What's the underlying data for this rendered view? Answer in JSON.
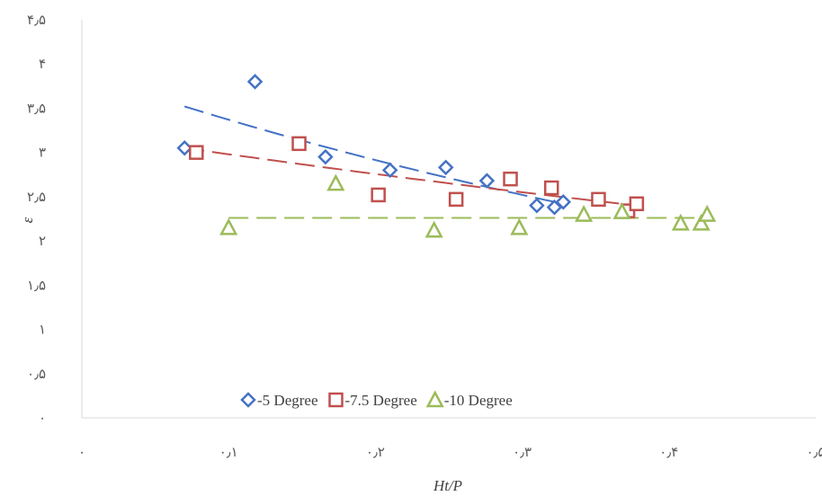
{
  "chart_data": {
    "type": "scatter",
    "xlabel": "Ht/P",
    "ylabel": "ε",
    "xlim": [
      0,
      0.5
    ],
    "ylim": [
      0,
      4.5
    ],
    "x_ticks": [
      0,
      0.1,
      0.2,
      0.3,
      0.4,
      0.5
    ],
    "x_tick_labels": [
      "۰",
      "۰٫۱",
      "۰٫۲",
      "۰٫۳",
      "۰٫۴",
      "۰٫۵"
    ],
    "y_ticks": [
      0,
      0.5,
      1,
      1.5,
      2,
      2.5,
      3,
      3.5,
      4,
      4.5
    ],
    "y_tick_labels": [
      "۰",
      "۰٫۵",
      "۱",
      "۱٫۵",
      "۲",
      "۲٫۵",
      "۳",
      "۳٫۵",
      "۴",
      "۴٫۵"
    ],
    "grid": false,
    "legend_position": "bottom-left-inside",
    "series": [
      {
        "name": "-5 Degree",
        "marker": "diamond",
        "color": "#4472C4",
        "x": [
          0.07,
          0.118,
          0.166,
          0.21,
          0.248,
          0.276,
          0.31,
          0.322,
          0.328
        ],
        "y": [
          3.05,
          3.8,
          2.95,
          2.8,
          2.83,
          2.68,
          2.4,
          2.38,
          2.44
        ]
      },
      {
        "name": "-7.5 Degree",
        "marker": "square",
        "color": "#C0504D",
        "x": [
          0.078,
          0.148,
          0.202,
          0.255,
          0.292,
          0.32,
          0.352,
          0.372,
          0.378
        ],
        "y": [
          3.0,
          3.1,
          2.52,
          2.47,
          2.7,
          2.6,
          2.47,
          2.34,
          2.42
        ]
      },
      {
        "name": "-10 Degree",
        "marker": "triangle",
        "color": "#9BBB59",
        "x": [
          0.1,
          0.173,
          0.24,
          0.298,
          0.342,
          0.368,
          0.408,
          0.422,
          0.426
        ],
        "y": [
          2.15,
          2.65,
          2.12,
          2.15,
          2.3,
          2.33,
          2.2,
          2.2,
          2.3
        ]
      }
    ],
    "trendlines": [
      {
        "series": "-5 Degree",
        "color": "#4472C4",
        "x": [
          0.07,
          0.328
        ],
        "y_at": [
          3.52,
          2.42
        ],
        "kind": "exponential"
      },
      {
        "series": "-7.5 Degree",
        "color": "#C0504D",
        "x": [
          0.07,
          0.378
        ],
        "y_at": [
          3.05,
          2.4
        ],
        "kind": "exponential"
      },
      {
        "series": "-10 Degree",
        "color": "#9BBB59",
        "x": [
          0.1,
          0.426
        ],
        "y_at": [
          2.26,
          2.26
        ],
        "kind": "linear"
      }
    ]
  }
}
